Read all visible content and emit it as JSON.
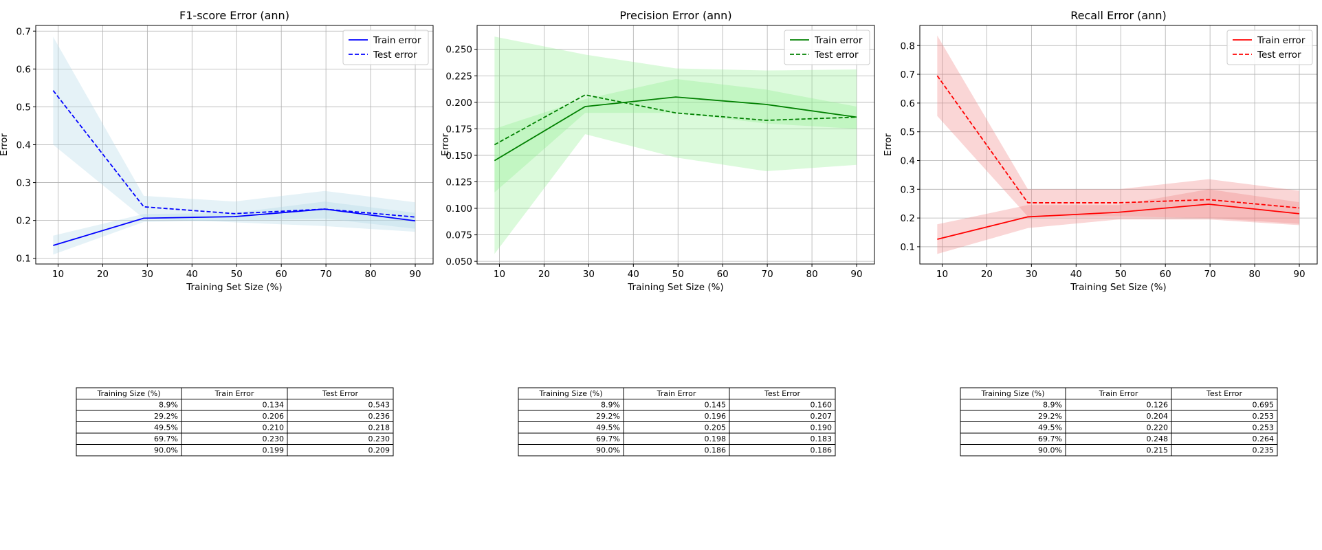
{
  "chart_data": [
    {
      "type": "line",
      "title": "F1-score Error (ann)",
      "xlabel": "Training Set Size (%)",
      "ylabel": "Error",
      "xlim": [
        5,
        94
      ],
      "ylim": [
        0.085,
        0.715
      ],
      "xticks": [
        10,
        20,
        30,
        40,
        50,
        60,
        70,
        80,
        90
      ],
      "yticks": [
        0.1,
        0.2,
        0.3,
        0.4,
        0.5,
        0.6,
        0.7
      ],
      "ytick_labels": [
        "0.1",
        "0.2",
        "0.3",
        "0.4",
        "0.5",
        "0.6",
        "0.7"
      ],
      "grid": true,
      "legend": "top-right",
      "color": "#0000ff",
      "band_color": "#add8e6",
      "x": [
        8.9,
        29.2,
        49.5,
        69.7,
        90.0
      ],
      "series": [
        {
          "name": "Train error",
          "style": "solid",
          "values": [
            0.134,
            0.206,
            0.21,
            0.23,
            0.199
          ],
          "band_low": [
            0.11,
            0.196,
            0.2,
            0.205,
            0.178
          ],
          "band_high": [
            0.16,
            0.217,
            0.22,
            0.25,
            0.22
          ]
        },
        {
          "name": "Test error",
          "style": "dashed",
          "values": [
            0.543,
            0.236,
            0.218,
            0.23,
            0.209
          ],
          "band_low": [
            0.4,
            0.205,
            0.195,
            0.185,
            0.17
          ],
          "band_high": [
            0.685,
            0.265,
            0.25,
            0.278,
            0.248
          ]
        }
      ],
      "table": {
        "headers": [
          "Training Size (%)",
          "Train Error",
          "Test Error"
        ],
        "rows": [
          [
            "8.9%",
            "0.134",
            "0.543"
          ],
          [
            "29.2%",
            "0.206",
            "0.236"
          ],
          [
            "49.5%",
            "0.210",
            "0.218"
          ],
          [
            "69.7%",
            "0.230",
            "0.230"
          ],
          [
            "90.0%",
            "0.199",
            "0.209"
          ]
        ]
      }
    },
    {
      "type": "line",
      "title": "Precision Error (ann)",
      "xlabel": "Training Set Size (%)",
      "ylabel": "Error",
      "xlim": [
        5,
        94
      ],
      "ylim": [
        0.0475,
        0.2725
      ],
      "xticks": [
        10,
        20,
        30,
        40,
        50,
        60,
        70,
        80,
        90
      ],
      "yticks": [
        0.05,
        0.075,
        0.1,
        0.125,
        0.15,
        0.175,
        0.2,
        0.225,
        0.25
      ],
      "ytick_labels": [
        "0.050",
        "0.075",
        "0.100",
        "0.125",
        "0.150",
        "0.175",
        "0.200",
        "0.225",
        "0.250"
      ],
      "grid": true,
      "legend": "top-right",
      "color": "#008000",
      "band_color": "#90ee90",
      "x": [
        8.9,
        29.2,
        49.5,
        69.7,
        90.0
      ],
      "series": [
        {
          "name": "Train error",
          "style": "solid",
          "values": [
            0.145,
            0.196,
            0.205,
            0.198,
            0.186
          ],
          "band_low": [
            0.115,
            0.19,
            0.19,
            0.18,
            0.175
          ],
          "band_high": [
            0.175,
            0.203,
            0.222,
            0.212,
            0.196
          ]
        },
        {
          "name": "Test error",
          "style": "dashed",
          "values": [
            0.16,
            0.207,
            0.19,
            0.183,
            0.186
          ],
          "band_low": [
            0.057,
            0.17,
            0.148,
            0.135,
            0.141
          ],
          "band_high": [
            0.262,
            0.245,
            0.232,
            0.23,
            0.231
          ]
        }
      ],
      "table": {
        "headers": [
          "Training Size (%)",
          "Train Error",
          "Test Error"
        ],
        "rows": [
          [
            "8.9%",
            "0.145",
            "0.160"
          ],
          [
            "29.2%",
            "0.196",
            "0.207"
          ],
          [
            "49.5%",
            "0.205",
            "0.190"
          ],
          [
            "69.7%",
            "0.198",
            "0.183"
          ],
          [
            "90.0%",
            "0.186",
            "0.186"
          ]
        ]
      }
    },
    {
      "type": "line",
      "title": "Recall Error (ann)",
      "xlabel": "Training Set Size (%)",
      "ylabel": "Error",
      "xlim": [
        5,
        94
      ],
      "ylim": [
        0.04,
        0.87
      ],
      "xticks": [
        10,
        20,
        30,
        40,
        50,
        60,
        70,
        80,
        90
      ],
      "yticks": [
        0.1,
        0.2,
        0.3,
        0.4,
        0.5,
        0.6,
        0.7,
        0.8
      ],
      "ytick_labels": [
        "0.1",
        "0.2",
        "0.3",
        "0.4",
        "0.5",
        "0.6",
        "0.7",
        "0.8"
      ],
      "grid": true,
      "legend": "top-right",
      "color": "#ff0000",
      "band_color": "#f08080",
      "x": [
        8.9,
        29.2,
        49.5,
        69.7,
        90.0
      ],
      "series": [
        {
          "name": "Train error",
          "style": "solid",
          "values": [
            0.126,
            0.204,
            0.22,
            0.248,
            0.215
          ],
          "band_low": [
            0.075,
            0.165,
            0.195,
            0.195,
            0.175
          ],
          "band_high": [
            0.178,
            0.245,
            0.245,
            0.3,
            0.255
          ]
        },
        {
          "name": "Test error",
          "style": "dashed",
          "values": [
            0.695,
            0.253,
            0.253,
            0.264,
            0.235
          ],
          "band_low": [
            0.555,
            0.205,
            0.205,
            0.2,
            0.18
          ],
          "band_high": [
            0.835,
            0.3,
            0.3,
            0.335,
            0.295
          ]
        }
      ],
      "table": {
        "headers": [
          "Training Size (%)",
          "Train Error",
          "Test Error"
        ],
        "rows": [
          [
            "8.9%",
            "0.126",
            "0.695"
          ],
          [
            "29.2%",
            "0.204",
            "0.253"
          ],
          [
            "49.5%",
            "0.220",
            "0.253"
          ],
          [
            "69.7%",
            "0.248",
            "0.264"
          ],
          [
            "90.0%",
            "0.215",
            "0.235"
          ]
        ]
      }
    }
  ]
}
